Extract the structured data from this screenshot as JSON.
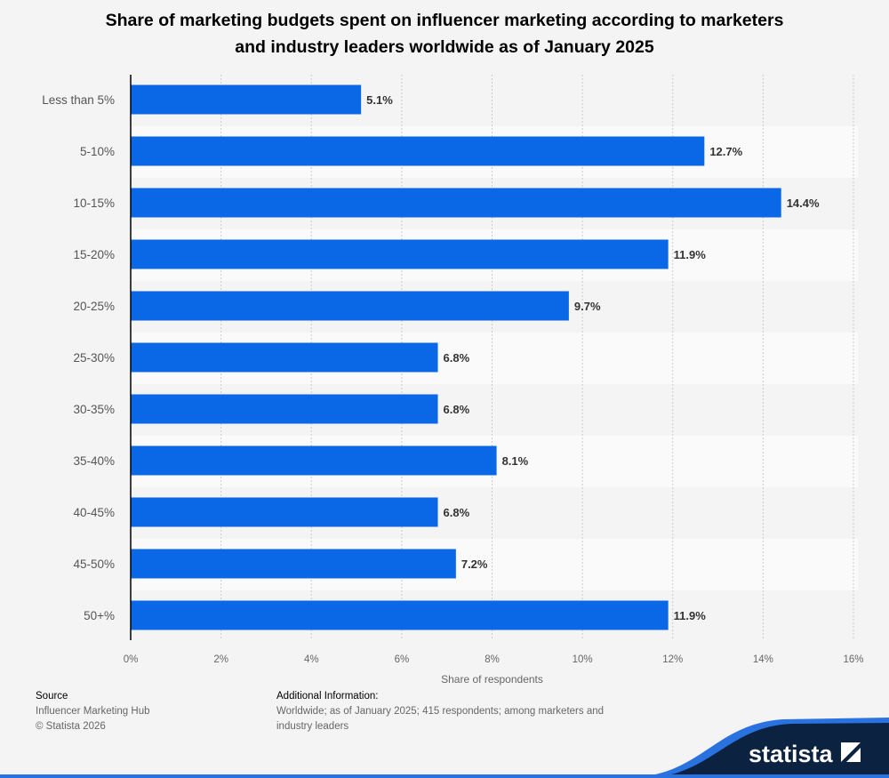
{
  "chart_data": {
    "type": "bar",
    "orientation": "horizontal",
    "title": "Share of marketing budgets spent on influencer marketing according to marketers and industry leaders worldwide as of January 2025",
    "categories": [
      "Less than 5%",
      "5-10%",
      "10-15%",
      "15-20%",
      "20-25%",
      "25-30%",
      "30-35%",
      "35-40%",
      "40-45%",
      "45-50%",
      "50+%"
    ],
    "values": [
      5.1,
      12.7,
      14.4,
      11.9,
      9.7,
      6.8,
      6.8,
      8.1,
      6.8,
      7.2,
      11.9
    ],
    "data_labels": [
      "5.1%",
      "12.7%",
      "14.4%",
      "11.9%",
      "9.7%",
      "6.8%",
      "6.8%",
      "8.1%",
      "6.8%",
      "7.2%",
      "11.9%"
    ],
    "xlabel": "Share of respondents",
    "ylabel": "",
    "xlim": [
      0,
      16
    ],
    "x_ticks": [
      "0%",
      "2%",
      "4%",
      "6%",
      "8%",
      "10%",
      "12%",
      "14%",
      "16%"
    ],
    "grid": true,
    "bar_color": "#0a68e6"
  },
  "footer": {
    "source_heading": "Source",
    "source_lines": [
      "Influencer Marketing Hub",
      "© Statista 2026"
    ],
    "info_heading": "Additional Information:",
    "info_text": "Worldwide; as of January 2025; 415 respondents; among marketers and industry leaders"
  },
  "brand": {
    "logo_text": "statista",
    "dark": "#0b2340",
    "accent": "#2a72e0"
  }
}
